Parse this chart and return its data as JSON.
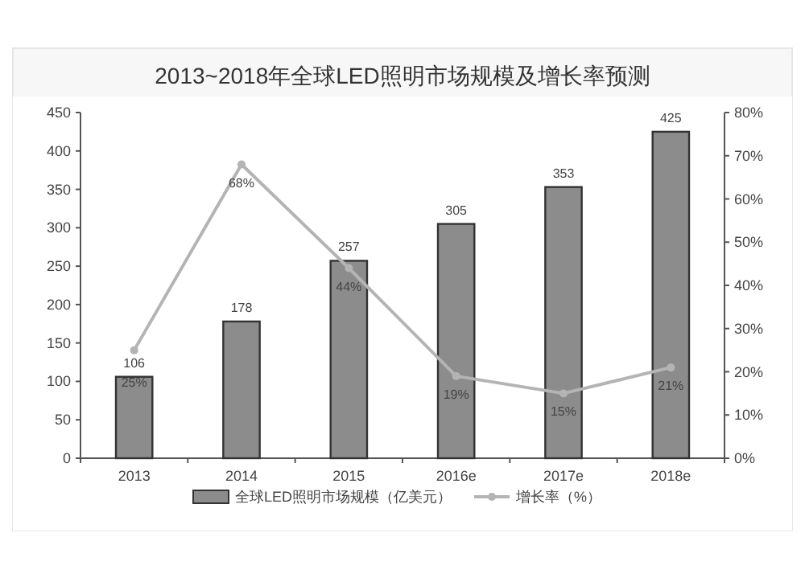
{
  "chart_data": {
    "type": "bar",
    "title": "2013~2018年全球LED照明市场规模及增长率预测",
    "categories": [
      "2013",
      "2014",
      "2015",
      "2016e",
      "2017e",
      "2018e"
    ],
    "series": [
      {
        "name": "全球LED照明市场规模（亿美元）",
        "color": "#8c8c8c",
        "values": [
          106,
          178,
          257,
          305,
          353,
          425
        ],
        "value_labels": [
          "106",
          "178",
          "257",
          "305",
          "353",
          "425"
        ]
      },
      {
        "name": "增长率（%）",
        "type": "line",
        "axis": "y2",
        "color": "#b4b4b4",
        "marker": "circle",
        "values": [
          25,
          68,
          44,
          19,
          15,
          21
        ],
        "value_labels": [
          "25%",
          "68%",
          "44%",
          "19%",
          "15%",
          "21%"
        ]
      }
    ],
    "ylim": [
      0,
      450
    ],
    "yticks": [
      0,
      50,
      100,
      150,
      200,
      250,
      300,
      350,
      400,
      450
    ],
    "y2lim": [
      0,
      80
    ],
    "y2ticks": [
      {
        "value": 0,
        "label": "0%"
      },
      {
        "value": 10,
        "label": "10%"
      },
      {
        "value": 20,
        "label": "20%"
      },
      {
        "value": 30,
        "label": "30%"
      },
      {
        "value": 40,
        "label": "40%"
      },
      {
        "value": 50,
        "label": "50%"
      },
      {
        "value": 60,
        "label": "60%"
      },
      {
        "value": 70,
        "label": "70%"
      },
      {
        "value": 80,
        "label": "80%"
      }
    ],
    "legend": "bottom",
    "grid": false
  }
}
